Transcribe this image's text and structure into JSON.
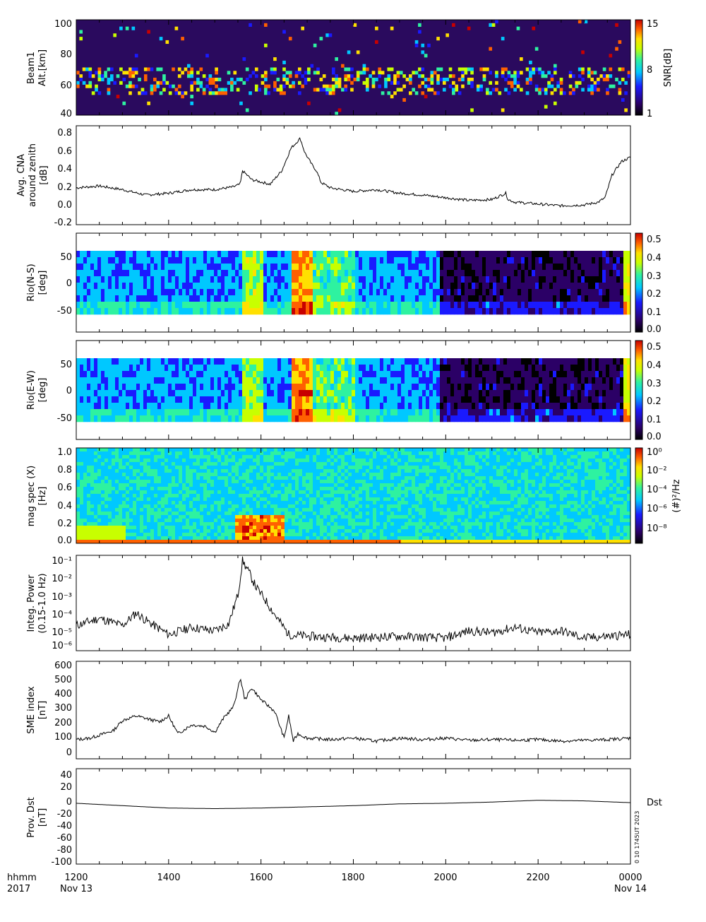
{
  "footer": {
    "time_format_label": "hhmm",
    "year_label": "2017",
    "start_date_label": "Nov 13",
    "end_date_label": "Nov 14",
    "x_ticks": [
      "1200",
      "1400",
      "1600",
      "1800",
      "2000",
      "2200",
      "0000"
    ],
    "side_stamp": "0 10 1745UT 2023"
  },
  "colors": {
    "frame": "#000000",
    "trace": "#000000",
    "spectrogram_base": "#2a0a5e",
    "colormap": [
      "#000000",
      "#2b0066",
      "#1a1aff",
      "#00c8ff",
      "#2ef2a0",
      "#c8ff00",
      "#ffe000",
      "#ff6000",
      "#c80000"
    ]
  },
  "chart_data": [
    {
      "type": "heatmap",
      "id": "beam1",
      "ylabel": [
        "Beam1",
        "Alt.[km]"
      ],
      "yticks": [
        "100",
        "80",
        "60",
        "40"
      ],
      "ylim": [
        40,
        102
      ],
      "colorbar_label": "SNR[dB]",
      "colorbar_ticks": [
        "15",
        "8",
        "1"
      ],
      "x": [
        "1200",
        "0000"
      ]
    },
    {
      "type": "line",
      "id": "cna",
      "ylabel": [
        "Avg. CNA",
        "around zenith",
        "[dB]"
      ],
      "yticks": [
        "0.8",
        "0.6",
        "0.4",
        "0.2",
        "0.0",
        "-0.2"
      ],
      "ylim": [
        -0.25,
        0.85
      ],
      "x_hours": [
        12.0,
        12.5,
        13.0,
        13.5,
        14.0,
        14.5,
        15.0,
        15.4,
        15.55,
        15.6,
        15.8,
        16.2,
        16.45,
        16.65,
        16.85,
        16.95,
        17.1,
        17.2,
        17.3,
        17.5,
        18.0,
        18.5,
        19.0,
        19.5,
        20.0,
        20.5,
        21.0,
        21.3,
        21.35,
        21.5,
        22.0,
        22.5,
        23.0,
        23.3,
        23.45,
        23.6,
        23.8,
        24.0
      ],
      "values": [
        0.16,
        0.18,
        0.14,
        0.08,
        0.1,
        0.14,
        0.14,
        0.17,
        0.2,
        0.35,
        0.25,
        0.2,
        0.35,
        0.6,
        0.71,
        0.55,
        0.42,
        0.35,
        0.22,
        0.16,
        0.12,
        0.14,
        0.1,
        0.08,
        0.05,
        0.02,
        0.03,
        0.1,
        0.03,
        0.0,
        -0.02,
        -0.04,
        -0.03,
        0.0,
        0.05,
        0.3,
        0.45,
        0.5
      ]
    },
    {
      "type": "heatmap",
      "id": "rio_ns",
      "ylabel": [
        "Rio(N-S)",
        "[deg]"
      ],
      "yticks": [
        "50",
        "0",
        "-50"
      ],
      "ylim": [
        -90,
        90
      ],
      "colorbar_ticks": [
        "0.5",
        "0.4",
        "0.3",
        "0.2",
        "0.1",
        "0.0"
      ]
    },
    {
      "type": "heatmap",
      "id": "rio_ew",
      "ylabel": [
        "Rio(E-W)",
        "[deg]"
      ],
      "yticks": [
        "50",
        "0",
        "-50"
      ],
      "ylim": [
        -90,
        90
      ],
      "colorbar_ticks": [
        "0.5",
        "0.4",
        "0.3",
        "0.2",
        "0.1",
        "0.0"
      ]
    },
    {
      "type": "heatmap",
      "id": "mag_spec",
      "ylabel": [
        "mag spec (X)",
        "[Hz]"
      ],
      "yticks": [
        "1.0",
        "0.8",
        "0.6",
        "0.4",
        "0.2",
        "0.0"
      ],
      "ylim": [
        -0.02,
        1.05
      ],
      "colorbar_label": "(#)²/Hz",
      "colorbar_ticks": [
        "10⁰",
        "10⁻²",
        "10⁻⁴",
        "10⁻⁶",
        "10⁻⁸"
      ]
    },
    {
      "type": "line",
      "id": "integ_power",
      "ylabel": [
        "Integ. Power",
        "(0.15-1.0 Hz)"
      ],
      "yticks": [
        "10⁻¹",
        "10⁻²",
        "10⁻³",
        "10⁻⁴",
        "10⁻⁵",
        "10⁻⁶"
      ],
      "log_scale": true,
      "ylim_log10": [
        -6.3,
        -1
      ],
      "x_hours": [
        12.0,
        12.5,
        13.0,
        13.3,
        13.5,
        14.0,
        14.5,
        15.0,
        15.3,
        15.5,
        15.6,
        15.75,
        15.9,
        16.1,
        16.3,
        16.6,
        17.0,
        18.0,
        19.0,
        20.0,
        20.5,
        21.0,
        21.5,
        22.0,
        22.5,
        23.0,
        23.5,
        24.0
      ],
      "log10_values": [
        -4.9,
        -4.5,
        -4.9,
        -4.2,
        -4.6,
        -5.4,
        -5.0,
        -5.2,
        -4.8,
        -3.2,
        -1.3,
        -2.0,
        -2.8,
        -3.5,
        -4.3,
        -5.4,
        -5.5,
        -5.6,
        -5.5,
        -5.6,
        -5.2,
        -5.3,
        -5.0,
        -5.3,
        -5.2,
        -5.6,
        -5.5,
        -5.4
      ]
    },
    {
      "type": "line",
      "id": "sme",
      "ylabel": [
        "SME index",
        "[nT]"
      ],
      "yticks": [
        "600",
        "500",
        "400",
        "300",
        "200",
        "100",
        "0"
      ],
      "ylim": [
        -20,
        640
      ],
      "x_hours": [
        12.0,
        12.3,
        12.8,
        13.0,
        13.3,
        13.8,
        14.0,
        14.2,
        14.5,
        14.8,
        15.0,
        15.2,
        15.4,
        15.5,
        15.55,
        15.65,
        15.8,
        16.0,
        16.3,
        16.5,
        16.6,
        16.7,
        16.8,
        17.0,
        17.5,
        18.0,
        18.5,
        19.0,
        19.5,
        20.0,
        20.5,
        21.0,
        21.5,
        22.0,
        22.5,
        23.0,
        23.5,
        24.0
      ],
      "values": [
        110,
        120,
        170,
        240,
        270,
        230,
        270,
        150,
        210,
        200,
        160,
        260,
        330,
        450,
        530,
        380,
        460,
        380,
        300,
        120,
        270,
        100,
        150,
        120,
        110,
        120,
        100,
        120,
        110,
        120,
        105,
        110,
        105,
        110,
        100,
        105,
        110,
        120
      ]
    },
    {
      "type": "line",
      "id": "dst",
      "ylabel": [
        "Prov. Dst",
        "[nT]"
      ],
      "yticks": [
        "40",
        "20",
        "0",
        "-20",
        "-40",
        "-60",
        "-80",
        "-100"
      ],
      "ylim": [
        -110,
        50
      ],
      "legend": "Dst",
      "x_hours": [
        12.0,
        13.0,
        14.0,
        15.0,
        16.0,
        17.0,
        18.0,
        19.0,
        20.0,
        21.0,
        22.0,
        23.0,
        24.0
      ],
      "values": [
        -8,
        -12,
        -16,
        -17,
        -16,
        -14,
        -12,
        -9,
        -8,
        -6,
        -3,
        -4,
        -7
      ]
    }
  ]
}
